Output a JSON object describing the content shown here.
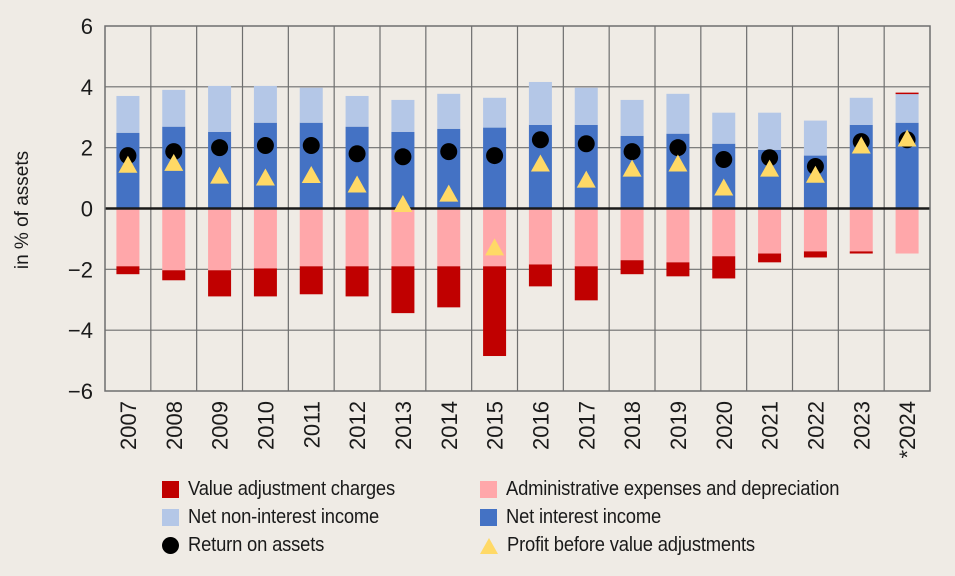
{
  "chart_data": {
    "type": "bar",
    "title": "",
    "xlabel": "",
    "ylabel": "in % of assets",
    "ylim": [
      -6,
      6
    ],
    "yticks": [
      6,
      4,
      2,
      0,
      -2,
      -4,
      -6
    ],
    "ytick_labels": [
      "6",
      "4",
      "2",
      "0",
      "−2",
      "−4",
      "−6"
    ],
    "grid": true,
    "legend_position": "bottom",
    "categories": [
      "2007",
      "2008",
      "2009",
      "2010",
      "2011",
      "2012",
      "2013",
      "2014",
      "2015",
      "2016",
      "2017",
      "2018",
      "2019",
      "2020",
      "2021",
      "2022",
      "2023",
      "*2024"
    ],
    "series": [
      {
        "name": "Value adjustment charges",
        "kind": "bar",
        "color": "#c00000",
        "values": [
          -0.26,
          -0.33,
          -0.86,
          -0.92,
          -0.92,
          -0.99,
          -1.54,
          -1.35,
          -2.95,
          -0.72,
          -1.12,
          -0.46,
          -0.46,
          -0.73,
          -0.29,
          -0.2,
          -0.07,
          0.04
        ]
      },
      {
        "name": "Administrative expenses and depreciation",
        "kind": "bar",
        "color": "#ffa7aa",
        "values": [
          -1.9,
          -2.03,
          -2.03,
          -1.97,
          -1.9,
          -1.9,
          -1.9,
          -1.9,
          -1.9,
          -1.84,
          -1.9,
          -1.7,
          -1.77,
          -1.57,
          -1.48,
          -1.41,
          -1.41,
          -1.48
        ]
      },
      {
        "name": "Net non-interest income",
        "kind": "bar",
        "color": "#b4c7e7",
        "values": [
          1.21,
          1.21,
          1.51,
          1.21,
          1.15,
          1.01,
          1.05,
          1.15,
          0.98,
          1.41,
          1.22,
          1.18,
          1.31,
          1.02,
          1.22,
          1.15,
          0.89,
          0.95
        ]
      },
      {
        "name": "Net interest income",
        "kind": "bar",
        "color": "#4472c4",
        "values": [
          2.49,
          2.69,
          2.52,
          2.82,
          2.82,
          2.69,
          2.52,
          2.62,
          2.66,
          2.75,
          2.75,
          2.39,
          2.46,
          2.13,
          1.93,
          1.74,
          2.75,
          2.82
        ]
      },
      {
        "name": "Return on assets",
        "kind": "circle",
        "color": "#000000",
        "values": [
          1.74,
          1.87,
          2.0,
          2.07,
          2.07,
          1.8,
          1.7,
          1.87,
          1.74,
          2.26,
          2.13,
          1.87,
          2.0,
          1.61,
          1.67,
          1.38,
          2.2,
          2.26
        ]
      },
      {
        "name": "Profit before value adjustments",
        "kind": "triangle",
        "color": "#ffd966",
        "values": [
          1.44,
          1.5,
          1.08,
          1.02,
          1.1,
          0.79,
          0.15,
          0.49,
          -1.28,
          1.48,
          0.95,
          1.31,
          1.48,
          0.69,
          1.31,
          1.11,
          2.07,
          2.3
        ]
      }
    ]
  },
  "legend": {
    "items": [
      {
        "label": "Value adjustment charges",
        "marker": "square",
        "color": "#c00000"
      },
      {
        "label": "Administrative expenses and depreciation",
        "marker": "square",
        "color": "#ffa7aa"
      },
      {
        "label": "Net non-interest income",
        "marker": "square",
        "color": "#b4c7e7"
      },
      {
        "label": "Net interest income",
        "marker": "square",
        "color": "#4472c4"
      },
      {
        "label": "Return on assets",
        "marker": "circle",
        "color": "#000000"
      },
      {
        "label": "Profit before value adjustments",
        "marker": "triangle",
        "color": "#ffd966"
      }
    ]
  }
}
